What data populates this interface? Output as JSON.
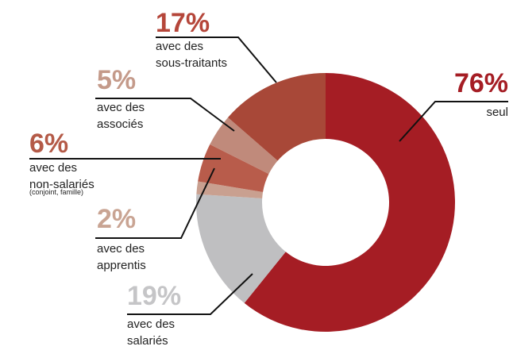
{
  "chart_data": {
    "type": "donut",
    "categories": [
      [
        "seul"
      ],
      [
        "avec des",
        "salariés"
      ],
      [
        "avec des",
        "apprentis"
      ],
      [
        "avec des",
        "non-salariés",
        "(conjoint, famille)"
      ],
      [
        "avec des",
        "associés"
      ],
      [
        "avec des",
        "sous-traitants"
      ]
    ],
    "values": [
      76,
      19,
      2,
      6,
      5,
      17
    ],
    "value_labels": [
      "76%",
      "19%",
      "2%",
      "6%",
      "5%",
      "17%"
    ],
    "colors": [
      "#a51d24",
      "#bfbfc1",
      "#c9a090",
      "#b85c4b",
      "#c08a7b",
      "#a84838"
    ],
    "label_colors": [
      "#a51d24",
      "#c5c5c7",
      "#c9a493",
      "#b45a47",
      "#c49a8a",
      "#b5463a"
    ]
  }
}
